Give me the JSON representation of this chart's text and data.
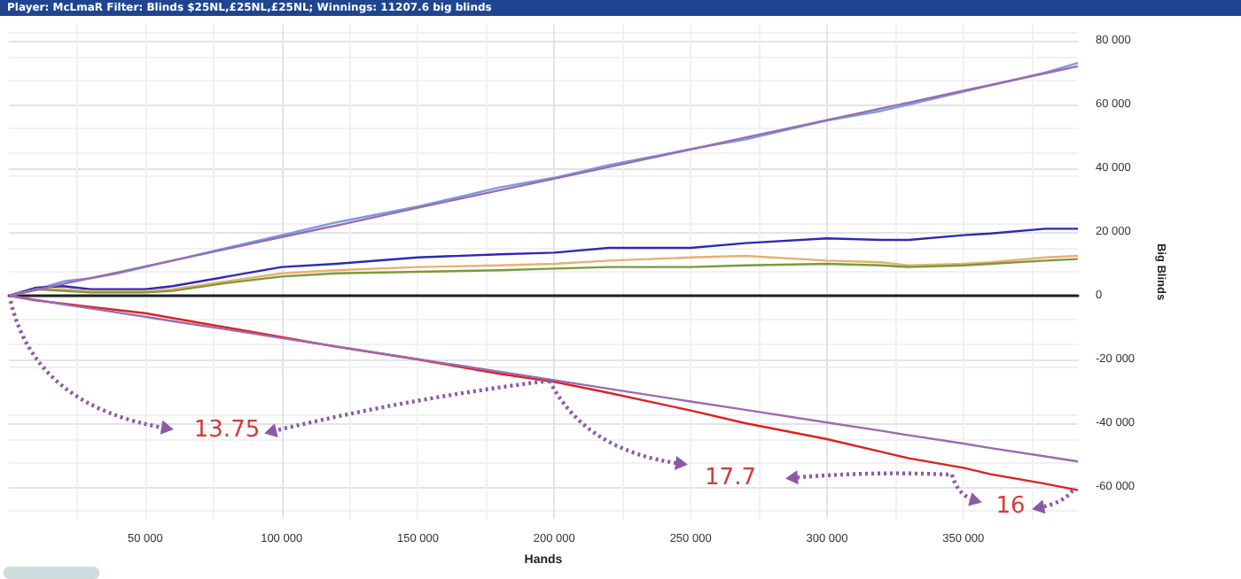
{
  "chart_data": {
    "type": "line",
    "title": "Player: McLmaR Filter: Blinds $25NL,£25NL,£25NL; Winnings: 11207.6 big blinds",
    "xlabel": "Hands",
    "ylabel": "Big Blinds",
    "xlim": [
      0,
      392000
    ],
    "ylim": [
      -70000,
      85000
    ],
    "xticks": [
      {
        "value": 50000,
        "label": "50 000"
      },
      {
        "value": 100000,
        "label": "100 000"
      },
      {
        "value": 150000,
        "label": "150 000"
      },
      {
        "value": 200000,
        "label": "200 000"
      },
      {
        "value": 250000,
        "label": "250 000"
      },
      {
        "value": 300000,
        "label": "300 000"
      },
      {
        "value": 350000,
        "label": "350 000"
      }
    ],
    "yticks": [
      {
        "value": -60000,
        "label": "-60 000"
      },
      {
        "value": -40000,
        "label": "-40 000"
      },
      {
        "value": -20000,
        "label": "-20 000"
      },
      0,
      {
        "value": 20000,
        "label": "20 000"
      },
      {
        "value": 40000,
        "label": "40 000"
      },
      {
        "value": 60000,
        "label": "60 000"
      },
      {
        "value": 80000,
        "label": "80 000"
      }
    ],
    "grid": true,
    "marker": "none",
    "x": [
      0,
      10000,
      20000,
      30000,
      40000,
      50000,
      60000,
      80000,
      100000,
      120000,
      150000,
      180000,
      200000,
      220000,
      250000,
      270000,
      300000,
      320000,
      330000,
      350000,
      360000,
      380000,
      392000
    ],
    "series": [
      {
        "color": "#7b9be0",
        "values": [
          0,
          2000,
          4500,
          5500,
          7000,
          9000,
          11000,
          15000,
          19000,
          23000,
          28000,
          34000,
          37000,
          41000,
          46000,
          49000,
          55000,
          58000,
          60000,
          64000,
          66000,
          70000,
          73000
        ]
      },
      {
        "color": "#2a2ab8",
        "values": [
          0,
          2500,
          3000,
          2000,
          2000,
          2000,
          3000,
          6000,
          9000,
          10000,
          12000,
          13000,
          13500,
          15000,
          15000,
          16500,
          18000,
          17500,
          17500,
          19000,
          19500,
          21000,
          21000
        ]
      },
      {
        "color": "#e8b070",
        "values": [
          0,
          2000,
          2000,
          1500,
          1500,
          1500,
          2000,
          4500,
          7000,
          8000,
          9000,
          9500,
          10000,
          11000,
          12000,
          12500,
          11000,
          10500,
          9500,
          10000,
          10500,
          12000,
          12500
        ]
      },
      {
        "color": "#7a9a3a",
        "values": [
          0,
          2000,
          1500,
          1000,
          1000,
          1000,
          1500,
          4000,
          6000,
          7000,
          7500,
          8000,
          8500,
          9000,
          9000,
          9500,
          10000,
          9500,
          9000,
          9500,
          10000,
          11000,
          11500
        ]
      },
      {
        "color": "#e02020",
        "values": [
          0,
          -1500,
          -2500,
          -3500,
          -4500,
          -5500,
          -7000,
          -10000,
          -13000,
          -16000,
          -20000,
          -24500,
          -27000,
          -30500,
          -36000,
          -40000,
          -45000,
          -49000,
          -51000,
          -54000,
          -56000,
          -59000,
          -61000
        ]
      },
      {
        "color": "#9b6bb0",
        "values": [
          0,
          1800,
          3700,
          5500,
          7300,
          9200,
          11000,
          14700,
          18400,
          22000,
          27600,
          33100,
          36700,
          40400,
          45900,
          49600,
          55100,
          58800,
          60600,
          64300,
          66100,
          69800,
          72000
        ]
      },
      {
        "color": "#9b6bb0",
        "values": [
          0,
          -1300,
          -2700,
          -4000,
          -5300,
          -6600,
          -8000,
          -10600,
          -13300,
          -15900,
          -19900,
          -23900,
          -26500,
          -29200,
          -33200,
          -35800,
          -39800,
          -42400,
          -43800,
          -46400,
          -47800,
          -50400,
          -52000
        ]
      }
    ],
    "annotations": [
      "13.75",
      "17.7",
      "16"
    ]
  }
}
